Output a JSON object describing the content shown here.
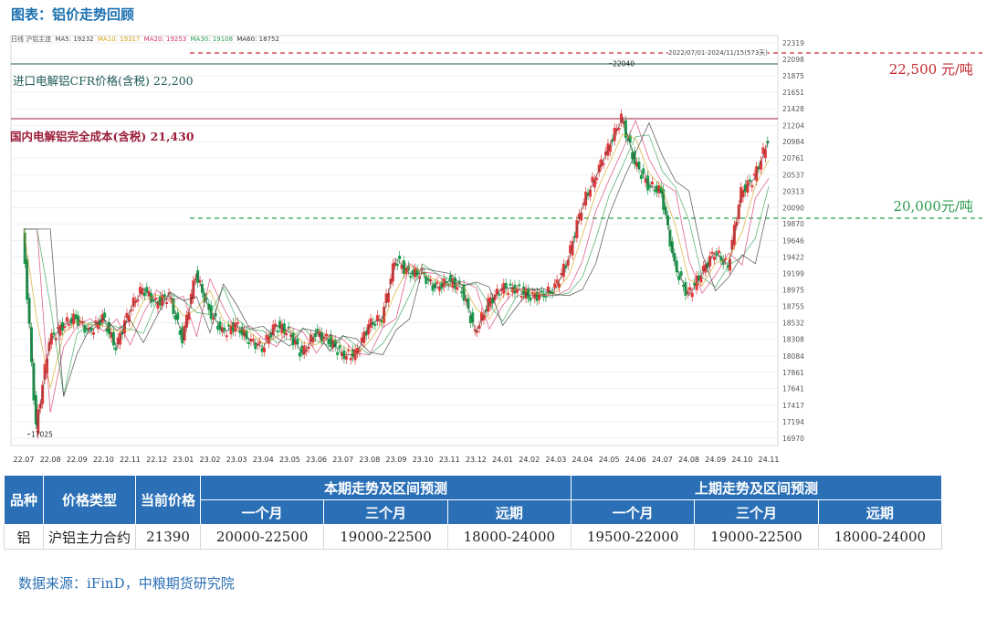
{
  "figure_title": "图表：铝价走势回顾",
  "legend_prefix": "日线  沪铝主连",
  "ma_legend": [
    {
      "label": "MA5: 19232",
      "color": "#444444"
    },
    {
      "label": "MA10: 19317",
      "color": "#d4a017"
    },
    {
      "label": "MA20: 19253",
      "color": "#d6336c"
    },
    {
      "label": "MA30: 19108",
      "color": "#2e9e4f"
    },
    {
      "label": "MA60: 18752",
      "color": "#333333"
    }
  ],
  "date_banner": "2022/07/01-2024/11/15(573天)",
  "annotations": {
    "cfr": "进口电解铝CFR价格(含税) 22,200",
    "cost": "国内电解铝完全成本(含税)  21,430",
    "top_line": "22,500 元/吨",
    "bottom_line": "20,000元/吨"
  },
  "colors": {
    "up": "#e0383a",
    "down": "#1a9b4b",
    "dash_top": "#d12b34",
    "dash_bottom": "#2aa050",
    "cfr_line": "#1d5a55",
    "cost_line": "#9b1e3a"
  },
  "chart_data": {
    "type": "line",
    "y_ticks": [
      22319,
      22098,
      21875,
      21651,
      21428,
      21204,
      20984,
      20761,
      20537,
      20313,
      20090,
      19870,
      19646,
      19422,
      19199,
      18975,
      18755,
      18532,
      18308,
      18084,
      17861,
      17641,
      17417,
      17194,
      16970
    ],
    "x_ticks": [
      "22.07",
      "22.08",
      "22.09",
      "22.10",
      "22.11",
      "22.12",
      "23.01",
      "23.02",
      "23.03",
      "23.04",
      "23.05",
      "23.06",
      "23.07",
      "23.08",
      "23.09",
      "23.10",
      "23.11",
      "23.12",
      "24.01",
      "24.02",
      "24.03",
      "24.04",
      "24.05",
      "24.06",
      "24.07",
      "24.08",
      "24.09",
      "24.10",
      "24.11"
    ],
    "ylim": [
      16970,
      22319
    ],
    "price_markers": [
      {
        "label": "22040",
        "x": "24.05",
        "y": 22040
      },
      {
        "label": "17025",
        "x": "22.07",
        "y": 17025
      }
    ],
    "reference_lines": [
      {
        "label": "22,500 元/吨",
        "y": 22500
      },
      {
        "label": "进口电解铝CFR价格(含税) 22,200",
        "y": 22200
      },
      {
        "label": "国内电解铝完全成本(含税)  21,430",
        "y": 21430
      },
      {
        "label": "20,000元/吨",
        "y": 20000
      }
    ],
    "series": [
      {
        "x": [
          "22.07",
          "22.07",
          "22.08",
          "22.08",
          "22.09",
          "22.09",
          "22.10",
          "22.10",
          "22.11",
          "22.11",
          "22.12",
          "22.12",
          "23.01",
          "23.01",
          "23.02",
          "23.02",
          "23.03",
          "23.03",
          "23.04",
          "23.04",
          "23.05",
          "23.05",
          "23.06",
          "23.06",
          "23.07",
          "23.07",
          "23.08",
          "23.08",
          "23.09",
          "23.09",
          "23.10",
          "23.10",
          "23.11",
          "23.11",
          "23.12",
          "23.12",
          "24.01",
          "24.01",
          "24.02",
          "24.02",
          "24.03",
          "24.03",
          "24.04",
          "24.04",
          "24.05",
          "24.05",
          "24.06",
          "24.06",
          "24.07",
          "24.07",
          "24.08",
          "24.08",
          "24.09",
          "24.09",
          "24.10",
          "24.10",
          "24.11"
        ],
        "values": [
          19800,
          17100,
          18300,
          18500,
          18600,
          18400,
          18600,
          18200,
          18700,
          19000,
          18800,
          18900,
          18300,
          19200,
          18700,
          18400,
          18500,
          18300,
          18200,
          18500,
          18400,
          18100,
          18400,
          18300,
          18100,
          18100,
          18500,
          18600,
          19400,
          19200,
          19200,
          19000,
          19100,
          19000,
          18400,
          18800,
          19000,
          19000,
          18900,
          18900,
          19000,
          19400,
          20100,
          20500,
          20900,
          21300,
          20700,
          20400,
          20300,
          19300,
          18900,
          19200,
          19500,
          19300,
          20300,
          20500,
          21000
        ]
      }
    ]
  },
  "table": {
    "headers_top": [
      "品种",
      "价格类型",
      "当前价格",
      "本期走势及区间预测",
      "上期走势及区间预测"
    ],
    "headers_sub": [
      "一个月",
      "三个月",
      "远期",
      "一个月",
      "三个月",
      "远期"
    ],
    "rows": [
      [
        "铝",
        "沪铝主力合约",
        "21390",
        "20000-22500",
        "19000-22500",
        "18000-24000",
        "19500-22000",
        "19000-22500",
        "18000-24000"
      ]
    ]
  },
  "source": "数据来源：iFinD，中粮期货研究院"
}
